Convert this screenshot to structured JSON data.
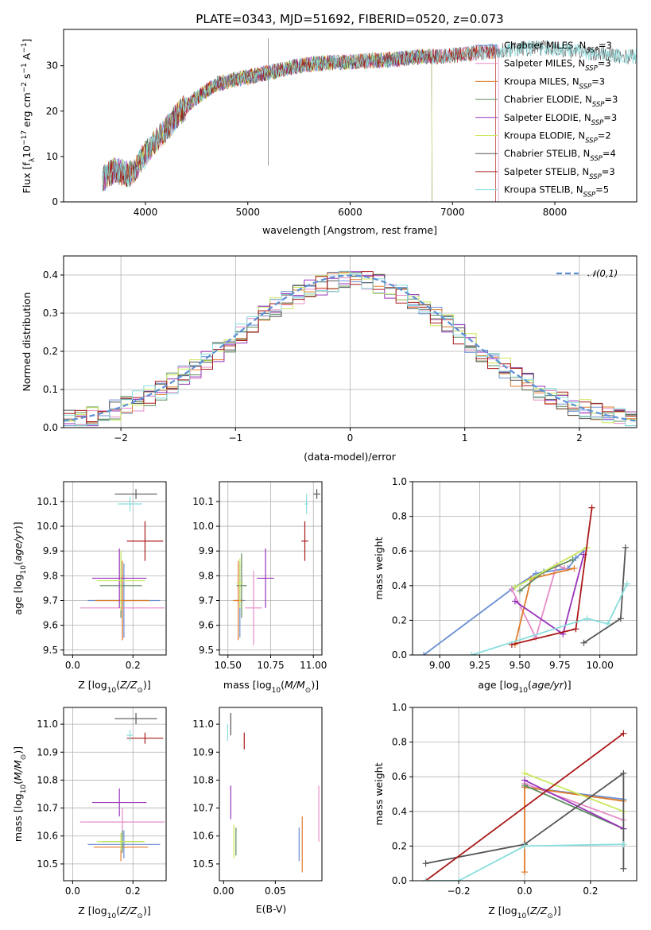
{
  "title": "PLATE=0343, MJD=51692, FIBERID=0520, z=0.073",
  "legend_titles": [
    "Chabrier MILES, N_SSP=3",
    "Salpeter MILES, N_SSP=3",
    "Kroupa MILES, N_SSP=3",
    "Chabrier ELODIE, N_SSP=3",
    "Salpeter ELODIE, N_SSP=3",
    "Kroupa ELODIE, N_SSP=2",
    "Chabrier STELIB, N_SSP=4",
    "Salpeter STELIB, N_SSP=3",
    "Kroupa STELIB, N_SSP=5"
  ],
  "series_colors": [
    "#6a8fd4",
    "#e68cc8",
    "#e07c2a",
    "#5e8c5e",
    "#9933bb",
    "#c9e85c",
    "#555555",
    "#aa1a1a",
    "#88dddd"
  ],
  "chart_data": [
    {
      "id": "spectrum",
      "type": "line",
      "title": "PLATE=0343, MJD=51692, FIBERID=0520, z=0.073",
      "xlabel": "wavelength [Angstrom, rest frame]",
      "ylabel": "Flux [f_λ10^-17 erg cm^-2 s^-1 A^-1]",
      "xlim": [
        3200,
        8800
      ],
      "ylim": [
        0,
        38
      ],
      "xticks": [
        4000,
        5000,
        6000,
        7000,
        8000
      ],
      "yticks": [
        0,
        10,
        20,
        30
      ],
      "grid": false,
      "legend_position": "upper right",
      "continuum": {
        "x": [
          3580,
          3700,
          3850,
          3950,
          4050,
          4200,
          4350,
          4500,
          4700,
          4900,
          5100,
          5300,
          5500,
          5700,
          5900,
          6100,
          6300,
          6500,
          6700,
          6900,
          7100,
          7300,
          7500,
          7700,
          7900,
          8100,
          8300,
          8500,
          8700
        ],
        "y": [
          5,
          7,
          6,
          9,
          12,
          16,
          20,
          23,
          26,
          27,
          28,
          29,
          30,
          30.5,
          30.8,
          31,
          31.2,
          31.5,
          32,
          32,
          32.5,
          33,
          33.5,
          33.8,
          34,
          33.5,
          33,
          32.5,
          32
        ]
      },
      "series": [
        {
          "name": "Chabrier MILES, N_SSP=3",
          "x_end": 7450
        },
        {
          "name": "Salpeter MILES, N_SSP=3",
          "x_end": 7450
        },
        {
          "name": "Kroupa MILES, N_SSP=3",
          "x_end": 7420
        },
        {
          "name": "Chabrier ELODIE, N_SSP=3",
          "x_end": 6800
        },
        {
          "name": "Salpeter ELODIE, N_SSP=3",
          "x_end": 6800
        },
        {
          "name": "Kroupa ELODIE, N_SSP=2",
          "x_end": 6800
        },
        {
          "name": "Chabrier STELIB, N_SSP=4",
          "x_end": 8800
        },
        {
          "name": "Salpeter STELIB, N_SSP=3",
          "x_end": 7420
        },
        {
          "name": "Kroupa STELIB, N_SSP=5",
          "x_end": 8800
        }
      ]
    },
    {
      "id": "residuals",
      "type": "histogram",
      "xlabel": "(data-model)/error",
      "ylabel": "Normed distribution",
      "xlim": [
        -2.5,
        2.5
      ],
      "ylim": [
        0,
        0.45
      ],
      "xticks": [
        -2,
        -1,
        0,
        1,
        2
      ],
      "yticks": [
        0.0,
        0.1,
        0.2,
        0.3,
        0.4
      ],
      "grid": true,
      "bin_width": 0.1,
      "reference_curve": {
        "label": "𝒩(0,1)",
        "mean": 0,
        "sigma": 1
      },
      "legend_position": "upper right"
    },
    {
      "id": "age_vs_Z",
      "type": "errorbar",
      "xlabel": "Z [log10(Z/Z☉)]",
      "ylabel": "age [log10(age/yr)]",
      "xlim": [
        -0.03,
        0.31
      ],
      "ylim": [
        9.48,
        10.18
      ],
      "xticks": [
        0.0,
        0.2
      ],
      "yticks": [
        9.5,
        9.6,
        9.7,
        9.8,
        9.9,
        10.0,
        10.1
      ],
      "grid": true,
      "points": [
        {
          "x": 0.17,
          "y": 9.7,
          "xerr": 0.12,
          "yerr": 0.15
        },
        {
          "x": 0.165,
          "y": 9.67,
          "xerr": 0.14,
          "yerr": 0.13
        },
        {
          "x": 0.165,
          "y": 9.7,
          "xerr": 0.09,
          "yerr": 0.16
        },
        {
          "x": 0.16,
          "y": 9.76,
          "xerr": 0.07,
          "yerr": 0.13
        },
        {
          "x": 0.155,
          "y": 9.79,
          "xerr": 0.09,
          "yerr": 0.12
        },
        {
          "x": 0.16,
          "y": 9.78,
          "xerr": 0.08,
          "yerr": 0.12
        },
        {
          "x": 0.21,
          "y": 10.13,
          "xerr": 0.07,
          "yerr": 0.02
        },
        {
          "x": 0.24,
          "y": 9.94,
          "xerr": 0.06,
          "yerr": 0.08
        },
        {
          "x": 0.19,
          "y": 10.09,
          "xerr": 0.04,
          "yerr": 0.03
        }
      ]
    },
    {
      "id": "age_vs_mass",
      "type": "errorbar",
      "xlabel": "mass [log10(M/M☉)]",
      "ylabel": "",
      "xlim": [
        10.45,
        11.05
      ],
      "ylim": [
        9.48,
        10.18
      ],
      "xticks": [
        10.5,
        10.75,
        11.0
      ],
      "yticks": [
        9.5,
        9.6,
        9.7,
        9.8,
        9.9,
        10.0,
        10.1
      ],
      "grid": true,
      "points": [
        {
          "x": 10.57,
          "y": 9.7,
          "xerr": 0.03,
          "yerr": 0.15
        },
        {
          "x": 10.65,
          "y": 9.67,
          "xerr": 0.05,
          "yerr": 0.15
        },
        {
          "x": 10.56,
          "y": 9.7,
          "xerr": 0.03,
          "yerr": 0.16
        },
        {
          "x": 10.58,
          "y": 9.76,
          "xerr": 0.03,
          "yerr": 0.13
        },
        {
          "x": 10.72,
          "y": 9.79,
          "xerr": 0.05,
          "yerr": 0.12
        },
        {
          "x": 10.57,
          "y": 9.77,
          "xerr": 0.02,
          "yerr": 0.1
        },
        {
          "x": 11.02,
          "y": 10.13,
          "xerr": 0.02,
          "yerr": 0.02
        },
        {
          "x": 10.95,
          "y": 9.94,
          "xerr": 0.02,
          "yerr": 0.08
        },
        {
          "x": 10.96,
          "y": 10.09,
          "xerr": 0.01,
          "yerr": 0.04
        }
      ]
    },
    {
      "id": "weight_vs_age",
      "type": "line",
      "xlabel": "age [log10(age/yr)]",
      "ylabel": "mass weight",
      "xlim": [
        8.83,
        10.23
      ],
      "ylim": [
        0,
        1
      ],
      "xticks": [
        9.0,
        9.25,
        9.5,
        9.75,
        10.0
      ],
      "yticks": [
        0.0,
        0.2,
        0.4,
        0.6,
        0.8,
        1.0
      ],
      "grid": true,
      "series": [
        {
          "x": [
            8.9,
            9.45,
            9.6,
            9.8,
            9.85,
            9.9
          ],
          "y": [
            0.0,
            0.38,
            0.47,
            0.5,
            0.56,
            0.6
          ]
        },
        {
          "x": [
            9.45,
            9.6,
            9.73,
            9.78
          ],
          "y": [
            0.38,
            0.1,
            0.52,
            0.5
          ]
        },
        {
          "x": [
            9.47,
            9.57,
            9.84
          ],
          "y": [
            0.06,
            0.44,
            0.5
          ]
        },
        {
          "x": [
            9.5,
            9.65,
            9.83
          ],
          "y": [
            0.37,
            0.48,
            0.55
          ]
        },
        {
          "x": [
            9.47,
            9.77,
            9.9
          ],
          "y": [
            0.31,
            0.12,
            0.58
          ]
        },
        {
          "x": [
            9.47,
            9.92
          ],
          "y": [
            0.39,
            0.62
          ]
        },
        {
          "x": [
            9.9,
            10.13,
            10.16
          ],
          "y": [
            0.07,
            0.21,
            0.62
          ]
        },
        {
          "x": [
            9.45,
            9.85,
            9.95
          ],
          "y": [
            0.06,
            0.15,
            0.85
          ]
        },
        {
          "x": [
            9.2,
            9.92,
            10.05,
            10.17
          ],
          "y": [
            0.0,
            0.21,
            0.18,
            0.41
          ]
        }
      ]
    },
    {
      "id": "mass_vs_Z",
      "type": "errorbar",
      "xlabel": "Z [log10(Z/Z☉)]",
      "ylabel": "mass [log10(M/M☉)]",
      "xlim": [
        -0.03,
        0.31
      ],
      "ylim": [
        10.44,
        11.06
      ],
      "xticks": [
        0.0,
        0.2
      ],
      "yticks": [
        10.5,
        10.6,
        10.7,
        10.8,
        10.9,
        11.0
      ],
      "grid": true,
      "points": [
        {
          "x": 0.17,
          "y": 10.57,
          "xerr": 0.12,
          "yerr": 0.05
        },
        {
          "x": 0.165,
          "y": 10.65,
          "xerr": 0.14,
          "yerr": 0.05
        },
        {
          "x": 0.16,
          "y": 10.56,
          "xerr": 0.09,
          "yerr": 0.05
        },
        {
          "x": 0.165,
          "y": 10.58,
          "xerr": 0.07,
          "yerr": 0.04
        },
        {
          "x": 0.155,
          "y": 10.72,
          "xerr": 0.09,
          "yerr": 0.05
        },
        {
          "x": 0.16,
          "y": 10.58,
          "xerr": 0.08,
          "yerr": 0.03
        },
        {
          "x": 0.21,
          "y": 11.02,
          "xerr": 0.07,
          "yerr": 0.02
        },
        {
          "x": 0.24,
          "y": 10.95,
          "xerr": 0.06,
          "yerr": 0.02
        },
        {
          "x": 0.19,
          "y": 10.96,
          "xerr": 0.01,
          "yerr": 0.02
        }
      ]
    },
    {
      "id": "mass_vs_ebv",
      "type": "errorbar",
      "xlabel": "E(B-V)",
      "ylabel": "",
      "xlim": [
        -0.004,
        0.095
      ],
      "ylim": [
        10.44,
        11.06
      ],
      "xticks": [
        0.0,
        0.05
      ],
      "yticks": [
        10.5,
        10.6,
        10.7,
        10.8,
        10.9,
        11.0
      ],
      "grid": false,
      "points": [
        {
          "x": 0.073,
          "y": 10.57,
          "xerr": 0,
          "yerr": 0.06
        },
        {
          "x": 0.092,
          "y": 10.68,
          "xerr": 0,
          "yerr": 0.1
        },
        {
          "x": 0.076,
          "y": 10.57,
          "xerr": 0,
          "yerr": 0.1
        },
        {
          "x": 0.012,
          "y": 10.58,
          "xerr": 0,
          "yerr": 0.05
        },
        {
          "x": 0.007,
          "y": 10.72,
          "xerr": 0,
          "yerr": 0.06
        },
        {
          "x": 0.01,
          "y": 10.58,
          "xerr": 0,
          "yerr": 0.06
        },
        {
          "x": 0.007,
          "y": 11.0,
          "xerr": 0,
          "yerr": 0.04
        },
        {
          "x": 0.02,
          "y": 10.94,
          "xerr": 0,
          "yerr": 0.03
        },
        {
          "x": 0.004,
          "y": 10.97,
          "xerr": 0,
          "yerr": 0.03
        }
      ]
    },
    {
      "id": "weight_vs_Z",
      "type": "line",
      "xlabel": "Z [log10(Z/Z☉)]",
      "ylabel": "mass weight",
      "xlim": [
        -0.34,
        0.34
      ],
      "ylim": [
        0,
        1
      ],
      "xticks": [
        -0.2,
        0.0,
        0.2
      ],
      "yticks": [
        0.0,
        0.2,
        0.4,
        0.6,
        0.8,
        1.0
      ],
      "grid": true,
      "series": [
        {
          "x": [
            0.0,
            0.3
          ],
          "y": [
            0.54,
            0.47
          ]
        },
        {
          "x": [
            0.0,
            0.3
          ],
          "y": [
            0.56,
            0.35
          ]
        },
        {
          "x": [
            0.0,
            0.0,
            0.3
          ],
          "y": [
            0.05,
            0.54,
            0.46
          ]
        },
        {
          "x": [
            0.0,
            0.3
          ],
          "y": [
            0.55,
            0.3
          ]
        },
        {
          "x": [
            0.0,
            0.3
          ],
          "y": [
            0.58,
            0.3
          ]
        },
        {
          "x": [
            0.0,
            0.3
          ],
          "y": [
            0.62,
            0.4
          ]
        },
        {
          "x": [
            -0.3,
            0.0,
            0.3,
            0.3
          ],
          "y": [
            0.1,
            0.21,
            0.62,
            0.07
          ]
        },
        {
          "x": [
            -0.3,
            0.3
          ],
          "y": [
            0.0,
            0.85
          ]
        },
        {
          "x": [
            -0.3,
            -0.2,
            0.0,
            0.3
          ],
          "y": [
            0.0,
            0.0,
            0.2,
            0.21
          ]
        }
      ]
    }
  ]
}
